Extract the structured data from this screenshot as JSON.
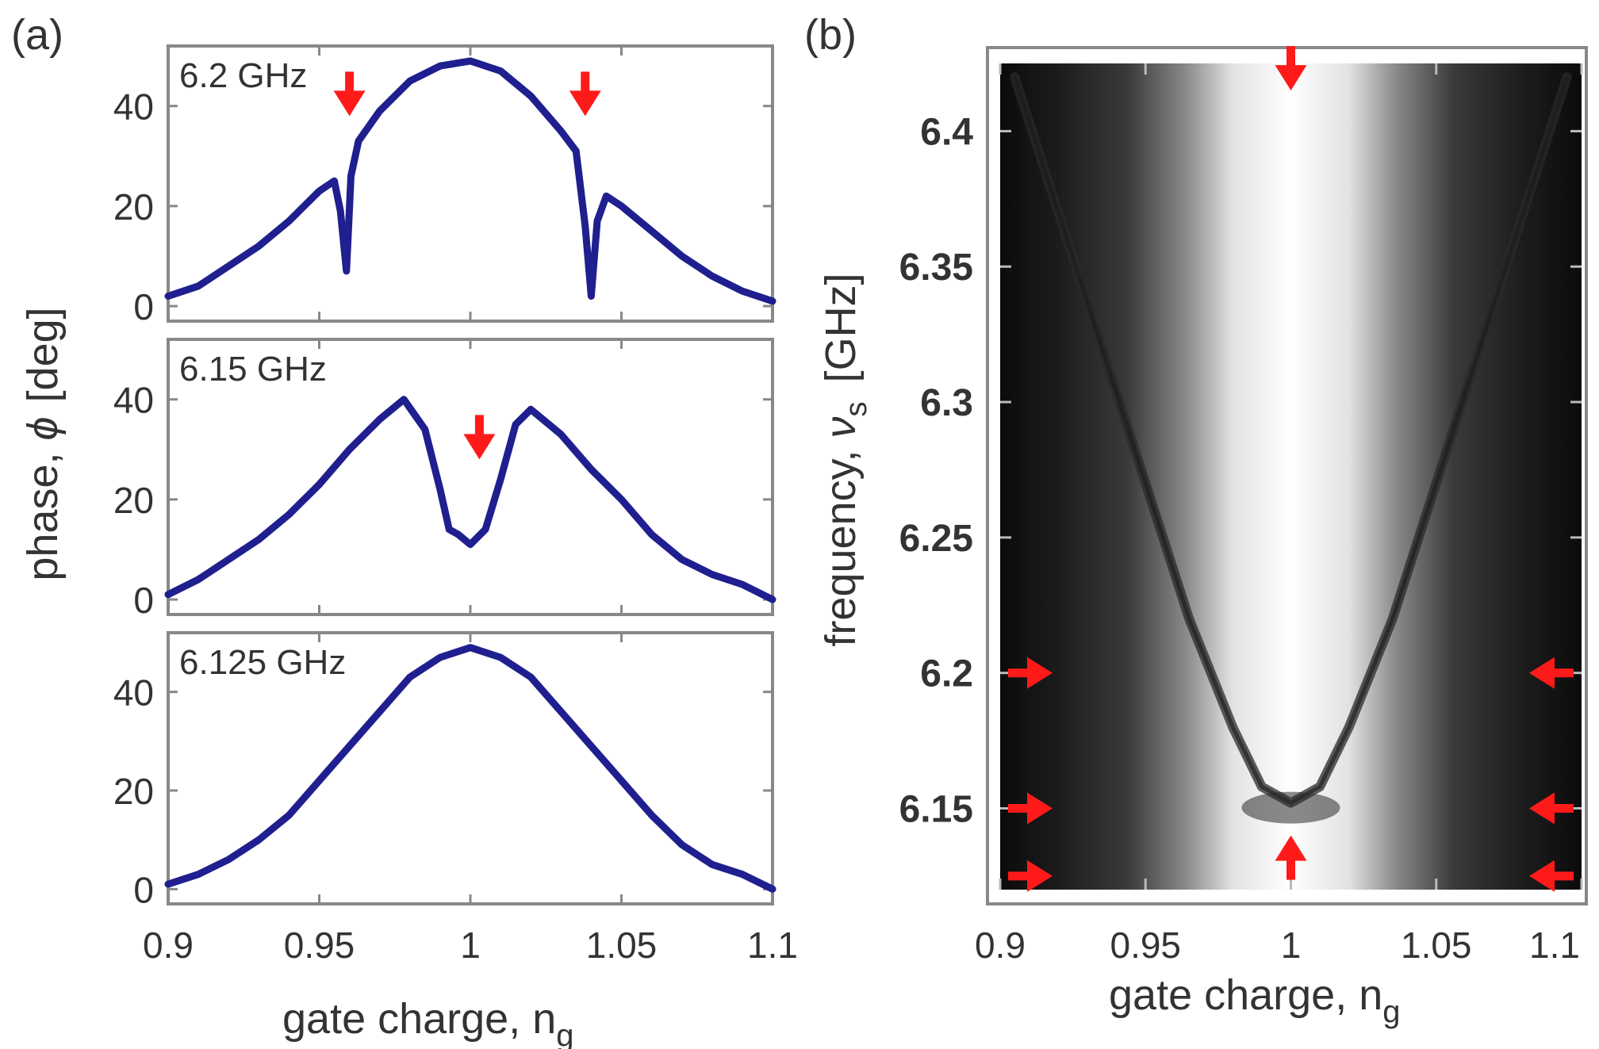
{
  "panel_a": {
    "panel_label": "(a)",
    "ylabel_text": "phase, ",
    "ylabel_symbol": "ϕ",
    "ylabel_unit": "[deg]",
    "xlabel_text": "gate charge, n",
    "xlabel_sub": "g"
  },
  "panel_b": {
    "panel_label": "(b)",
    "ylabel_text": "frequency, ",
    "ylabel_symbol": "ν",
    "ylabel_sub": "s",
    "ylabel_unit": "[GHz]",
    "xlabel_text": "gate charge, n",
    "xlabel_sub": "g"
  },
  "colors": {
    "trace": "#1f1f8f",
    "arrow": "#ff1a1a",
    "frame": "#888888",
    "text": "#333333"
  },
  "chart_data": [
    {
      "type": "line",
      "annotation": "6.2 GHz",
      "xlim": [
        0.9,
        1.1
      ],
      "ylim": [
        -3,
        52
      ],
      "xticks": [
        "0.9",
        "0.95",
        "1",
        "1.05",
        "1.1"
      ],
      "yticks": [
        "0",
        "20",
        "40"
      ],
      "series": [
        {
          "x": [
            0.9,
            0.91,
            0.92,
            0.93,
            0.94,
            0.95,
            0.955,
            0.957,
            0.959,
            0.9605,
            0.963,
            0.97,
            0.98,
            0.99,
            1.0,
            1.01,
            1.02,
            1.03,
            1.035,
            1.038,
            1.04,
            1.042,
            1.045,
            1.05,
            1.06,
            1.07,
            1.08,
            1.09,
            1.1
          ],
          "y": [
            2,
            4,
            8,
            12,
            17,
            23,
            25,
            19,
            7,
            26,
            33,
            39,
            45,
            48,
            49,
            47,
            42,
            35,
            31,
            16,
            2,
            17,
            22,
            20,
            15,
            10,
            6,
            3,
            1
          ]
        }
      ],
      "arrows": [
        {
          "x": 0.96,
          "y": 38,
          "dir": "down"
        },
        {
          "x": 1.038,
          "y": 38,
          "dir": "down"
        }
      ]
    },
    {
      "type": "line",
      "annotation": "6.15 GHz",
      "xlim": [
        0.9,
        1.1
      ],
      "ylim": [
        -3,
        52
      ],
      "xticks": [
        "0.9",
        "0.95",
        "1",
        "1.05",
        "1.1"
      ],
      "yticks": [
        "0",
        "20",
        "40"
      ],
      "series": [
        {
          "x": [
            0.9,
            0.91,
            0.92,
            0.93,
            0.94,
            0.95,
            0.96,
            0.97,
            0.978,
            0.985,
            0.99,
            0.993,
            0.996,
            1.0,
            1.005,
            1.01,
            1.015,
            1.02,
            1.03,
            1.04,
            1.05,
            1.06,
            1.07,
            1.08,
            1.09,
            1.1
          ],
          "y": [
            1,
            4,
            8,
            12,
            17,
            23,
            30,
            36,
            40,
            34,
            22,
            14,
            13,
            11,
            14,
            24,
            35,
            38,
            33,
            26,
            20,
            13,
            8,
            5,
            3,
            0
          ]
        }
      ],
      "arrows": [
        {
          "x": 1.003,
          "y": 28,
          "dir": "down"
        }
      ]
    },
    {
      "type": "line",
      "annotation": "6.125 GHz",
      "xlim": [
        0.9,
        1.1
      ],
      "ylim": [
        -3,
        52
      ],
      "xticks": [
        "0.9",
        "0.95",
        "1",
        "1.05",
        "1.1"
      ],
      "yticks": [
        "0",
        "20",
        "40"
      ],
      "xlabel": "gate charge, ng",
      "series": [
        {
          "x": [
            0.9,
            0.91,
            0.92,
            0.93,
            0.94,
            0.95,
            0.96,
            0.97,
            0.98,
            0.99,
            1.0,
            1.01,
            1.02,
            1.03,
            1.04,
            1.05,
            1.06,
            1.07,
            1.08,
            1.09,
            1.1
          ],
          "y": [
            1,
            3,
            6,
            10,
            15,
            22,
            29,
            36,
            43,
            47,
            49,
            47,
            43,
            36,
            29,
            22,
            15,
            9,
            5,
            3,
            0
          ]
        }
      ],
      "arrows": []
    },
    {
      "type": "heatmap",
      "xlim": [
        0.9,
        1.1
      ],
      "ylim": [
        6.12,
        6.425
      ],
      "xticks": [
        "0.9",
        "0.95",
        "1",
        "1.05",
        "1.1"
      ],
      "yticks": [
        "6.15",
        "6.2",
        "6.25",
        "6.3",
        "6.35",
        "6.4"
      ],
      "ylabel": "frequency, νs [GHz]",
      "xlabel": "gate charge, ng",
      "colormap": "grayscale",
      "bright_band_center": 1.0,
      "dark_resonance_curve": {
        "description": "parabola",
        "vertex": [
          1.0,
          6.152
        ],
        "points": [
          [
            0.905,
            6.42
          ],
          [
            0.92,
            6.37
          ],
          [
            0.935,
            6.32
          ],
          [
            0.95,
            6.27
          ],
          [
            0.965,
            6.22
          ],
          [
            0.98,
            6.18
          ],
          [
            0.99,
            6.158
          ],
          [
            1.0,
            6.152
          ],
          [
            1.01,
            6.158
          ],
          [
            1.02,
            6.18
          ],
          [
            1.035,
            6.22
          ],
          [
            1.05,
            6.27
          ],
          [
            1.065,
            6.32
          ],
          [
            1.08,
            6.37
          ],
          [
            1.095,
            6.42
          ]
        ]
      },
      "arrows": [
        {
          "x": 1.0,
          "y": 6.415,
          "dir": "down"
        },
        {
          "x": 1.0,
          "y": 6.14,
          "dir": "up"
        },
        {
          "x": 0.9,
          "y": 6.2,
          "dir": "right"
        },
        {
          "x": 0.9,
          "y": 6.15,
          "dir": "right"
        },
        {
          "x": 0.9,
          "y": 6.125,
          "dir": "right"
        },
        {
          "x": 1.1,
          "y": 6.2,
          "dir": "left"
        },
        {
          "x": 1.1,
          "y": 6.15,
          "dir": "left"
        },
        {
          "x": 1.1,
          "y": 6.125,
          "dir": "left"
        }
      ]
    }
  ]
}
